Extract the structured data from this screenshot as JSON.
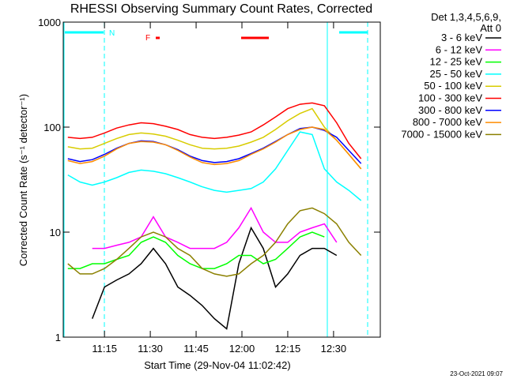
{
  "chart_data": {
    "type": "line",
    "title": "RHESSI Observing Summary Count Rates, Corrected",
    "y_label": "Corrected Count Rate (s⁻¹ detector⁻¹)",
    "x_label": "Start Time (29-Nov-04 11:02:42)",
    "footer": "23-Oct-2021 09:07",
    "legend_title": [
      "Det 1,3,4,5,6,9,",
      "Att 0"
    ],
    "annotations": [
      "N",
      "F"
    ],
    "log_y": true,
    "xlim": [
      661.5,
      765.3
    ],
    "ylim": [
      1,
      1000
    ],
    "xticks": [
      {
        "value": 675,
        "label": "11:15"
      },
      {
        "value": 690,
        "label": "11:30"
      },
      {
        "value": 705,
        "label": "11:45"
      },
      {
        "value": 720,
        "label": "12:00"
      },
      {
        "value": 735,
        "label": "12:15"
      },
      {
        "value": 750,
        "label": "12:30"
      }
    ],
    "yticks": [
      1,
      10,
      100,
      1000
    ],
    "x": [
      663,
      667,
      671,
      675,
      679,
      683,
      687,
      691,
      695,
      699,
      703,
      707,
      711,
      715,
      719,
      723,
      727,
      731,
      735,
      739,
      743,
      747,
      751,
      755,
      759
    ],
    "series": [
      {
        "name": "3 - 6 keV",
        "color": "#000000",
        "values": [
          null,
          null,
          1.5,
          3,
          3.5,
          4,
          5,
          7,
          5,
          3,
          2.5,
          2,
          1.5,
          1.2,
          5,
          11,
          7,
          3,
          4,
          6,
          7,
          7,
          6,
          null,
          null
        ]
      },
      {
        "name": "6 - 12 keV",
        "color": "#ff00ff",
        "values": [
          null,
          null,
          7,
          7,
          7.5,
          8,
          9,
          14,
          9,
          8,
          7,
          7,
          7,
          8,
          11,
          17,
          10,
          8,
          8,
          10,
          11,
          12,
          8,
          null,
          null
        ]
      },
      {
        "name": "12 - 25 keV",
        "color": "#00ff00",
        "values": [
          4.5,
          4.5,
          5,
          5,
          5.5,
          6,
          8,
          9,
          8,
          6,
          5,
          4.5,
          4.5,
          5,
          6,
          6,
          5,
          5.5,
          7,
          9,
          10,
          9,
          null,
          null,
          null
        ]
      },
      {
        "name": "25 - 50 keV",
        "color": "#00ffff",
        "values": [
          35,
          30,
          28,
          30,
          33,
          37,
          39,
          38,
          36,
          33,
          30,
          27,
          25,
          24,
          25,
          26,
          30,
          40,
          60,
          90,
          85,
          40,
          30,
          25,
          20
        ]
      },
      {
        "name": "50 - 100 keV",
        "color": "#d8cc00",
        "values": [
          65,
          62,
          63,
          70,
          78,
          85,
          88,
          86,
          82,
          75,
          68,
          63,
          62,
          63,
          66,
          72,
          80,
          95,
          115,
          135,
          150,
          100,
          75,
          55,
          40
        ]
      },
      {
        "name": "100 - 300 keV",
        "color": "#ff0000",
        "values": [
          80,
          78,
          80,
          88,
          98,
          105,
          110,
          108,
          102,
          95,
          85,
          80,
          78,
          80,
          84,
          90,
          105,
          125,
          150,
          165,
          170,
          160,
          110,
          70,
          50
        ]
      },
      {
        "name": "300 - 800 keV",
        "color": "#0000ff",
        "values": [
          50,
          47,
          49,
          55,
          63,
          70,
          74,
          73,
          68,
          61,
          53,
          48,
          46,
          47,
          50,
          56,
          63,
          73,
          85,
          97,
          100,
          93,
          80,
          60,
          45
        ]
      },
      {
        "name": "800 - 7000 keV",
        "color": "#ff8c00",
        "values": [
          48,
          45,
          47,
          53,
          62,
          70,
          73,
          72,
          68,
          60,
          52,
          46,
          44,
          45,
          48,
          55,
          62,
          72,
          85,
          95,
          100,
          95,
          75,
          55,
          40
        ]
      },
      {
        "name": "7000 - 15000 keV",
        "color": "#8b8000",
        "values": [
          5,
          4,
          4,
          4.5,
          5.5,
          7,
          9,
          10,
          9,
          7,
          6,
          4.5,
          4,
          3.8,
          4,
          5,
          6,
          8,
          12,
          16,
          17,
          15,
          12,
          8,
          6
        ]
      }
    ]
  }
}
